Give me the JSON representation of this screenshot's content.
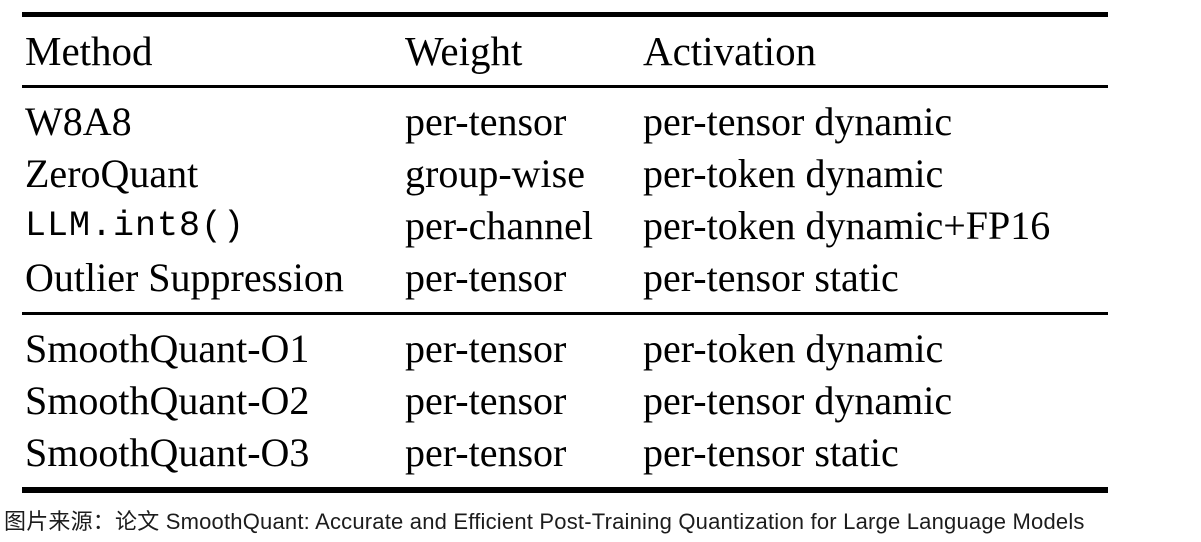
{
  "table": {
    "columns": [
      "Method",
      "Weight",
      "Activation"
    ],
    "sections": [
      {
        "rows": [
          {
            "method": "W8A8",
            "weight": "per-tensor",
            "activation": "per-tensor dynamic",
            "mono": false
          },
          {
            "method": "ZeroQuant",
            "weight": "group-wise",
            "activation": "per-token dynamic",
            "mono": false
          },
          {
            "method": "LLM.int8()",
            "weight": "per-channel",
            "activation": "per-token dynamic+FP16",
            "mono": true
          },
          {
            "method": "Outlier Suppression",
            "weight": "per-tensor",
            "activation": "per-tensor static",
            "mono": false
          }
        ]
      },
      {
        "rows": [
          {
            "method": "SmoothQuant-O1",
            "weight": "per-tensor",
            "activation": "per-token dynamic",
            "mono": false
          },
          {
            "method": "SmoothQuant-O2",
            "weight": "per-tensor",
            "activation": "per-tensor dynamic",
            "mono": false
          },
          {
            "method": "SmoothQuant-O3",
            "weight": "per-tensor",
            "activation": "per-tensor static",
            "mono": false
          }
        ]
      }
    ]
  },
  "caption": {
    "text": "图片来源：论文 SmoothQuant: Accurate and Efficient Post-Training Quantization for Large Language Models"
  },
  "colors": {
    "text": "#000000",
    "rule": "#000000",
    "caption": "#1c1c1c",
    "background": "#ffffff"
  }
}
